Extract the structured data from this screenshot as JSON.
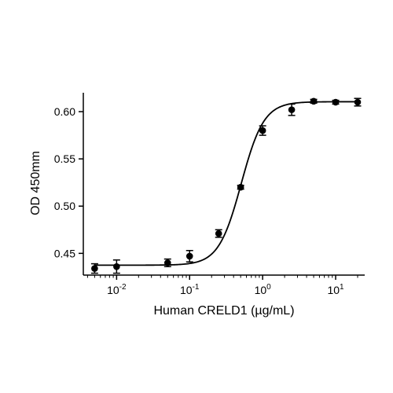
{
  "chart_data": {
    "type": "scatter",
    "xlabel": "Human CRELD1 (µg/mL)",
    "ylabel": "OD 450mm",
    "x_scale": "log",
    "xlim": [
      0.0035,
      25
    ],
    "ylim": [
      0.427,
      0.62
    ],
    "x_ticks": [
      {
        "value": 0.01,
        "base": "10",
        "exp": "-2"
      },
      {
        "value": 0.1,
        "base": "10",
        "exp": "-1"
      },
      {
        "value": 1,
        "base": "10",
        "exp": "0"
      },
      {
        "value": 10,
        "base": "10",
        "exp": "1"
      }
    ],
    "y_ticks": [
      {
        "value": 0.45,
        "label": "0.45"
      },
      {
        "value": 0.5,
        "label": "0.50"
      },
      {
        "value": 0.55,
        "label": "0.55"
      },
      {
        "value": 0.6,
        "label": "0.60"
      }
    ],
    "series": [
      {
        "points": [
          {
            "x": 0.005,
            "y": 0.434,
            "err": 0.005
          },
          {
            "x": 0.01,
            "y": 0.436,
            "err": 0.007
          },
          {
            "x": 0.05,
            "y": 0.44,
            "err": 0.004
          },
          {
            "x": 0.1,
            "y": 0.447,
            "err": 0.006
          },
          {
            "x": 0.25,
            "y": 0.471,
            "err": 0.004
          },
          {
            "x": 0.5,
            "y": 0.52,
            "err": 0.002
          },
          {
            "x": 1,
            "y": 0.58,
            "err": 0.005
          },
          {
            "x": 2.5,
            "y": 0.602,
            "err": 0.006
          },
          {
            "x": 5,
            "y": 0.611,
            "err": 0.002
          },
          {
            "x": 10,
            "y": 0.61,
            "err": 0.002
          },
          {
            "x": 20,
            "y": 0.61,
            "err": 0.004
          }
        ],
        "fit": {
          "model": "4PL",
          "bottom": 0.4375,
          "top": 0.6105,
          "ec50": 0.51,
          "hill": 2.8,
          "x_range": [
            0.005,
            20
          ]
        }
      }
    ],
    "grid": false,
    "legend": "none",
    "colors": {
      "marker": "#000000",
      "line": "#000000",
      "axis": "#000000"
    }
  }
}
